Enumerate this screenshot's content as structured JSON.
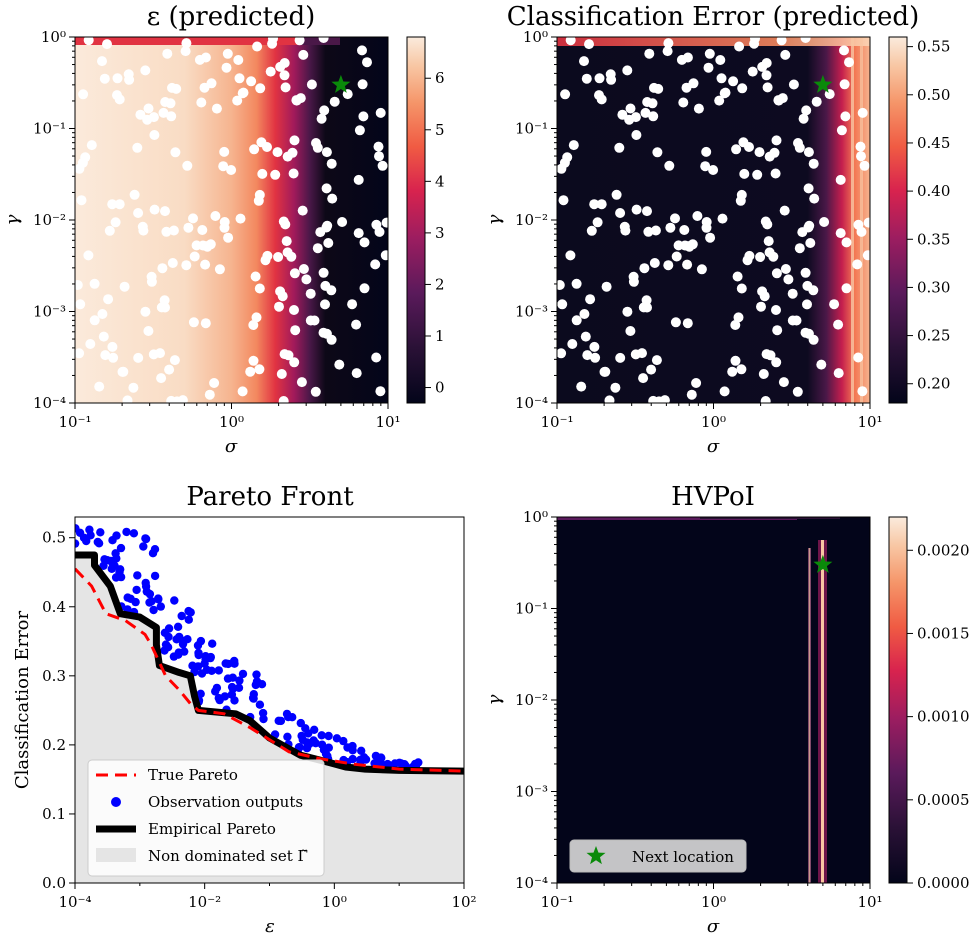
{
  "chart_data": [
    {
      "type": "heatmap",
      "title": "ε (predicted)",
      "xlabel": "σ",
      "ylabel": "γ",
      "xscale": "log",
      "yscale": "log",
      "xlim": [
        0.1,
        10
      ],
      "ylim": [
        0.0001,
        1
      ],
      "xticks": [
        "10⁻¹",
        "10⁰",
        "10¹"
      ],
      "yticks": [
        "10⁻⁴",
        "10⁻³",
        "10⁻²",
        "10⁻¹",
        "10⁰"
      ],
      "colorbar": {
        "ticks": [
          0,
          1,
          2,
          3,
          4,
          5,
          6
        ],
        "labels": [
          "0",
          "1",
          "2",
          "3",
          "4",
          "5",
          "6"
        ],
        "range": [
          -0.3,
          6.8
        ]
      },
      "field_description_sigma_profile": [
        [
          0.1,
          6.6
        ],
        [
          0.5,
          6.3
        ],
        [
          1.0,
          5.6
        ],
        [
          1.6,
          4.6
        ],
        [
          2.2,
          3.4
        ],
        [
          3.0,
          1.6
        ],
        [
          3.8,
          0.4
        ],
        [
          4.5,
          -0.1
        ],
        [
          10,
          -0.3
        ]
      ],
      "next_location": {
        "sigma": 5.0,
        "gamma": 0.3
      }
    },
    {
      "type": "heatmap",
      "title": "Classification Error (predicted)",
      "xlabel": "σ",
      "ylabel": "γ",
      "xscale": "log",
      "yscale": "log",
      "xlim": [
        0.1,
        10
      ],
      "ylim": [
        0.0001,
        1
      ],
      "xticks": [
        "10⁻¹",
        "10⁰",
        "10¹"
      ],
      "yticks": [
        "10⁻⁴",
        "10⁻³",
        "10⁻²",
        "10⁻¹",
        "10⁰"
      ],
      "colorbar": {
        "ticks": [
          0.2,
          0.25,
          0.3,
          0.35,
          0.4,
          0.45,
          0.5,
          0.55
        ],
        "labels": [
          "0.20",
          "0.25",
          "0.30",
          "0.35",
          "0.40",
          "0.45",
          "0.50",
          "0.55"
        ],
        "range": [
          0.18,
          0.56
        ]
      },
      "next_location": {
        "sigma": 5.0,
        "gamma": 0.3
      }
    },
    {
      "type": "scatter",
      "title": "Pareto Front",
      "xlabel": "ε",
      "ylabel": "Classification Error",
      "xscale": "log",
      "xlim": [
        0.0001,
        100
      ],
      "ylim": [
        0.0,
        0.53
      ],
      "xticks": [
        "10⁻⁴",
        "10⁻²",
        "10⁰",
        "10²"
      ],
      "yticks": [
        "0.0",
        "0.1",
        "0.2",
        "0.3",
        "0.4",
        "0.5"
      ],
      "legend_position": "lower-left",
      "series": [
        {
          "name": "True Pareto",
          "style": "dashed",
          "color": "#ff0000",
          "points": [
            [
              0.0001,
              0.455
            ],
            [
              0.00018,
              0.43
            ],
            [
              0.0003,
              0.39
            ],
            [
              0.0006,
              0.38
            ],
            [
              0.0012,
              0.36
            ],
            [
              0.0015,
              0.345
            ],
            [
              0.0025,
              0.3
            ],
            [
              0.004,
              0.28
            ],
            [
              0.006,
              0.26
            ],
            [
              0.008,
              0.25
            ],
            [
              0.02,
              0.245
            ],
            [
              0.05,
              0.225
            ],
            [
              0.2,
              0.19
            ],
            [
              0.6,
              0.18
            ],
            [
              2,
              0.172
            ],
            [
              10,
              0.165
            ],
            [
              100,
              0.162
            ]
          ]
        },
        {
          "name": "Observation outputs",
          "style": "markers",
          "color": "#0000ff"
        },
        {
          "name": "Empirical Pareto",
          "style": "step",
          "color": "#000000",
          "points": [
            [
              0.0001,
              0.475
            ],
            [
              0.0002,
              0.475
            ],
            [
              0.0002,
              0.46
            ],
            [
              0.00035,
              0.43
            ],
            [
              0.0005,
              0.39
            ],
            [
              0.001,
              0.385
            ],
            [
              0.0018,
              0.37
            ],
            [
              0.0018,
              0.345
            ],
            [
              0.002,
              0.315
            ],
            [
              0.004,
              0.305
            ],
            [
              0.006,
              0.3
            ],
            [
              0.007,
              0.27
            ],
            [
              0.008,
              0.25
            ],
            [
              0.03,
              0.245
            ],
            [
              0.05,
              0.235
            ],
            [
              0.1,
              0.21
            ],
            [
              0.3,
              0.185
            ],
            [
              0.8,
              0.175
            ],
            [
              1.5,
              0.168
            ],
            [
              3,
              0.165
            ],
            [
              10,
              0.163
            ],
            [
              100,
              0.162
            ]
          ]
        },
        {
          "name": "Non dominated set Γ̃",
          "style": "fill",
          "color": "#e5e5e5"
        }
      ]
    },
    {
      "type": "heatmap",
      "title": "HVPoI",
      "xlabel": "σ",
      "ylabel": "γ",
      "xscale": "log",
      "yscale": "log",
      "xlim": [
        0.1,
        10
      ],
      "ylim": [
        0.0001,
        1
      ],
      "xticks": [
        "10⁻¹",
        "10⁰",
        "10¹"
      ],
      "yticks": [
        "10⁻⁴",
        "10⁻³",
        "10⁻²",
        "10⁻¹",
        "10⁰"
      ],
      "colorbar": {
        "ticks": [
          0,
          0.0005,
          0.001,
          0.0015,
          0.002
        ],
        "labels": [
          "0.0000",
          "0.0005",
          "0.0010",
          "0.0015",
          "0.0020"
        ],
        "range": [
          0,
          0.0022
        ]
      },
      "legend_position": "lower-left",
      "legend": [
        "Next location"
      ],
      "next_location": {
        "sigma": 5.0,
        "gamma": 0.3
      }
    }
  ]
}
